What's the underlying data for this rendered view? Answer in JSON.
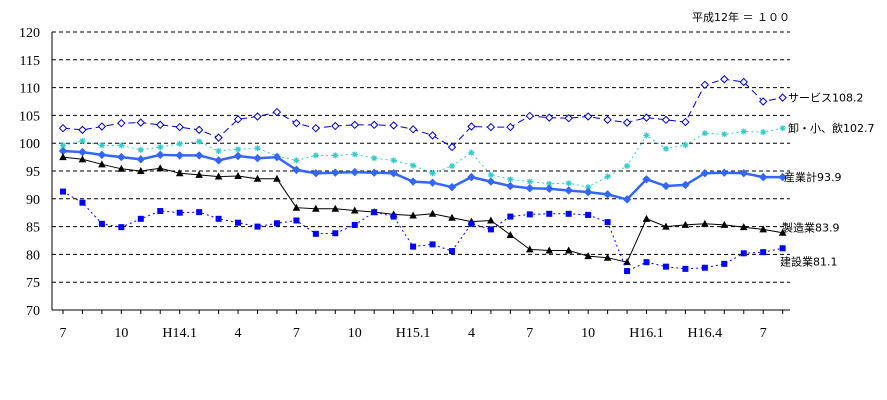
{
  "chart_data": {
    "type": "line",
    "title": "",
    "xlabel": "",
    "ylabel": "",
    "note": "平成12年 ＝ １００",
    "ylim": [
      70,
      120
    ],
    "yticks": [
      70,
      75,
      80,
      85,
      90,
      95,
      100,
      105,
      110,
      115,
      120
    ],
    "grid": "horizontal-dashed",
    "x": [
      "7",
      "8",
      "9",
      "10",
      "11",
      "12",
      "H14.1",
      "2",
      "3",
      "4",
      "5",
      "6",
      "7",
      "8",
      "9",
      "10",
      "11",
      "12",
      "H15.1",
      "2",
      "3",
      "4",
      "5",
      "6",
      "7",
      "8",
      "9",
      "10",
      "11",
      "12",
      "H16.1",
      "2",
      "3",
      "H16.4",
      "5",
      "6",
      "7",
      "8"
    ],
    "x_tick_labels": [
      {
        "index": 0,
        "label": "7"
      },
      {
        "index": 3,
        "label": "10"
      },
      {
        "index": 6,
        "label": "H14.1"
      },
      {
        "index": 9,
        "label": "4"
      },
      {
        "index": 12,
        "label": "7"
      },
      {
        "index": 15,
        "label": "10"
      },
      {
        "index": 18,
        "label": "H15.1"
      },
      {
        "index": 21,
        "label": "4"
      },
      {
        "index": 24,
        "label": "7"
      },
      {
        "index": 27,
        "label": "10"
      },
      {
        "index": 30,
        "label": "H16.1"
      },
      {
        "index": 33,
        "label": "H16.4"
      },
      {
        "index": 36,
        "label": "7"
      }
    ],
    "series": [
      {
        "name": "サービス108.2",
        "key": "service",
        "color": "#0000cc",
        "line": "dashed",
        "marker": "diamond-open",
        "values": [
          102.7,
          102.4,
          103.0,
          103.6,
          103.7,
          103.3,
          102.9,
          102.4,
          101.0,
          104.3,
          104.8,
          105.6,
          103.6,
          102.7,
          103.1,
          103.3,
          103.3,
          103.2,
          102.5,
          101.4,
          99.3,
          103.0,
          102.9,
          102.9,
          104.9,
          104.6,
          104.5,
          104.8,
          104.2,
          103.7,
          104.6,
          104.2,
          103.8,
          110.5,
          111.5,
          111.0,
          107.5,
          108.2
        ]
      },
      {
        "name": "卸・小、飲102.7",
        "key": "wholesale",
        "color": "#33cccc",
        "line": "dotted",
        "marker": "star",
        "values": [
          99.6,
          100.4,
          99.6,
          99.6,
          98.8,
          99.3,
          99.9,
          100.3,
          98.6,
          98.9,
          99.1,
          97.7,
          96.9,
          97.8,
          97.8,
          98.0,
          97.3,
          96.9,
          96.0,
          94.6,
          95.9,
          98.3,
          94.3,
          93.5,
          93.1,
          92.7,
          92.8,
          92.1,
          94.0,
          95.9,
          101.4,
          99.0,
          99.7,
          101.8,
          101.6,
          102.1,
          102.0,
          102.7
        ]
      },
      {
        "name": "産業計93.9",
        "key": "total",
        "color": "#3366ff",
        "line": "solid-thick",
        "marker": "diamond-filled",
        "values": [
          98.6,
          98.4,
          97.9,
          97.5,
          97.1,
          97.9,
          97.8,
          97.8,
          96.9,
          97.7,
          97.3,
          97.5,
          95.2,
          94.6,
          94.7,
          94.8,
          94.7,
          94.6,
          93.1,
          92.9,
          92.1,
          93.9,
          93.1,
          92.3,
          91.9,
          91.8,
          91.5,
          91.2,
          90.8,
          89.9,
          93.5,
          92.3,
          92.5,
          94.6,
          94.7,
          94.6,
          93.9,
          93.9
        ]
      },
      {
        "name": "製造業83.9",
        "key": "manufacturing",
        "color": "#000000",
        "line": "solid",
        "marker": "triangle",
        "values": [
          97.5,
          97.1,
          96.2,
          95.4,
          95.0,
          95.5,
          94.6,
          94.3,
          94.0,
          94.1,
          93.6,
          93.6,
          88.4,
          88.2,
          88.2,
          87.9,
          87.6,
          87.2,
          87.0,
          87.3,
          86.6,
          85.9,
          86.1,
          83.5,
          80.9,
          80.7,
          80.7,
          79.7,
          79.4,
          78.6,
          86.4,
          85.0,
          85.3,
          85.5,
          85.3,
          84.9,
          84.5,
          83.9
        ]
      },
      {
        "name": "建設業81.1",
        "key": "construction",
        "color": "#0000ff",
        "line": "dash-dot",
        "marker": "square",
        "values": [
          91.3,
          89.3,
          85.5,
          84.9,
          86.4,
          87.8,
          87.5,
          87.6,
          86.4,
          85.7,
          85.0,
          85.6,
          86.1,
          83.7,
          83.8,
          85.3,
          87.6,
          86.8,
          81.4,
          81.8,
          80.6,
          85.5,
          84.5,
          86.8,
          87.2,
          87.3,
          87.3,
          87.1,
          85.8,
          77.0,
          78.6,
          77.8,
          77.4,
          77.6,
          78.3,
          80.2,
          80.4,
          81.1
        ]
      }
    ]
  },
  "colors": {
    "background": "#ffffff",
    "grid": "#000000",
    "axis": "#000000"
  }
}
